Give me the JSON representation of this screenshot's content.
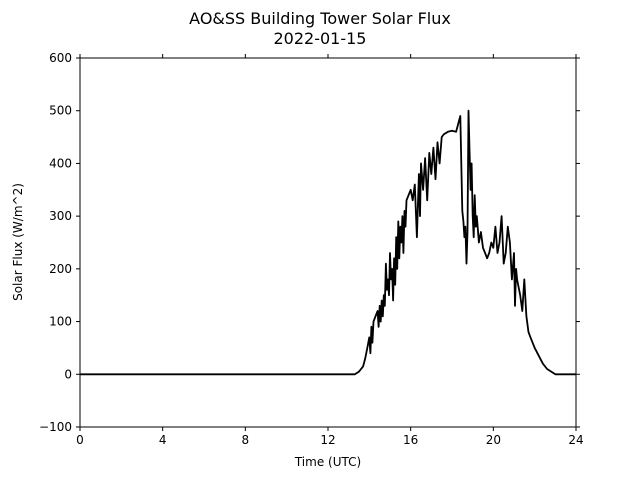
{
  "chart_data": {
    "type": "line",
    "title": "AO&SS Building Tower Solar Flux",
    "subtitle": "2022-01-15",
    "xlabel": "Time (UTC)",
    "ylabel": "Solar Flux (W/m^2)",
    "xlim": [
      0,
      24
    ],
    "ylim": [
      -100,
      600
    ],
    "xticks": [
      0,
      4,
      8,
      12,
      16,
      20,
      24
    ],
    "yticks": [
      -100,
      0,
      100,
      200,
      300,
      400,
      500,
      600
    ],
    "xtick_labels": [
      "0",
      "4",
      "8",
      "12",
      "16",
      "20",
      "24"
    ],
    "ytick_labels": [
      "−100",
      "0",
      "100",
      "200",
      "300",
      "400",
      "500",
      "600"
    ],
    "grid": false,
    "line_color": "#000000",
    "series": [
      {
        "x": [
          0,
          13.3,
          13.5,
          13.7,
          13.8,
          13.9,
          14.0,
          14.05,
          14.1,
          14.15,
          14.2,
          14.3,
          14.4,
          14.45,
          14.5,
          14.55,
          14.6,
          14.65,
          14.7,
          14.75,
          14.8,
          14.85,
          14.9,
          14.95,
          15.0,
          15.05,
          15.1,
          15.15,
          15.2,
          15.25,
          15.3,
          15.35,
          15.4,
          15.45,
          15.5,
          15.55,
          15.6,
          15.65,
          15.7,
          15.75,
          15.8,
          15.9,
          16.0,
          16.1,
          16.2,
          16.3,
          16.4,
          16.45,
          16.5,
          16.6,
          16.7,
          16.8,
          16.9,
          17.0,
          17.1,
          17.2,
          17.3,
          17.4,
          17.5,
          17.6,
          17.8,
          18.0,
          18.2,
          18.4,
          18.5,
          18.55,
          18.6,
          18.65,
          18.7,
          18.75,
          18.8,
          18.85,
          18.9,
          18.95,
          19.0,
          19.05,
          19.1,
          19.15,
          19.2,
          19.3,
          19.4,
          19.5,
          19.6,
          19.7,
          19.8,
          19.9,
          20.0,
          20.1,
          20.2,
          20.3,
          20.4,
          20.5,
          20.6,
          20.7,
          20.8,
          20.9,
          21.0,
          21.05,
          21.1,
          21.15,
          21.2,
          21.3,
          21.4,
          21.5,
          21.6,
          21.7,
          21.8,
          22.0,
          22.2,
          22.4,
          22.6,
          22.8,
          23.0,
          23.3,
          24.0
        ],
        "y": [
          0,
          0,
          5,
          15,
          30,
          50,
          70,
          40,
          90,
          60,
          100,
          110,
          120,
          90,
          130,
          100,
          140,
          110,
          150,
          130,
          210,
          160,
          180,
          150,
          230,
          180,
          200,
          140,
          220,
          170,
          260,
          200,
          290,
          220,
          280,
          250,
          300,
          230,
          310,
          280,
          330,
          340,
          350,
          330,
          360,
          260,
          380,
          300,
          400,
          350,
          410,
          330,
          420,
          380,
          430,
          370,
          440,
          400,
          450,
          455,
          460,
          462,
          460,
          490,
          310,
          290,
          260,
          280,
          210,
          270,
          500,
          420,
          350,
          400,
          300,
          260,
          340,
          280,
          300,
          250,
          270,
          240,
          230,
          220,
          230,
          250,
          240,
          280,
          230,
          250,
          300,
          210,
          230,
          280,
          250,
          180,
          230,
          130,
          200,
          180,
          170,
          150,
          120,
          180,
          110,
          80,
          70,
          50,
          35,
          20,
          10,
          5,
          0,
          0,
          0
        ],
        "color": "#000000"
      }
    ]
  }
}
